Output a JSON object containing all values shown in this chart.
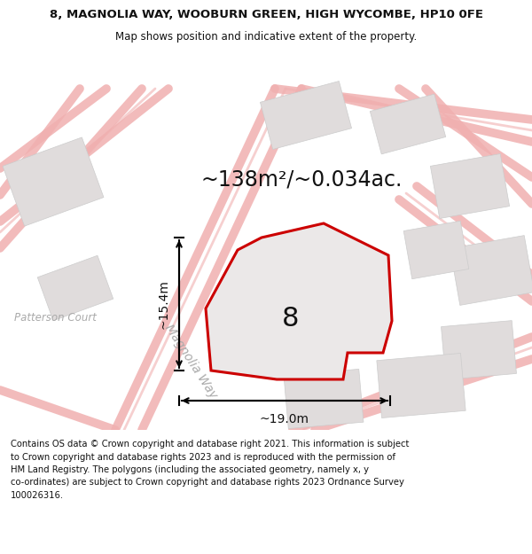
{
  "title_line1": "8, MAGNOLIA WAY, WOOBURN GREEN, HIGH WYCOMBE, HP10 0FE",
  "title_line2": "Map shows position and indicative extent of the property.",
  "area_label": "~138m²/~0.034ac.",
  "property_number": "8",
  "vertical_measure": "~15.4m",
  "horizontal_measure": "~19.0m",
  "road_label": "Magnolia Way",
  "court_label": "Patterson Court",
  "footer_text": "Contains OS data © Crown copyright and database right 2021. This information is subject\nto Crown copyright and database rights 2023 and is reproduced with the permission of\nHM Land Registry. The polygons (including the associated geometry, namely x, y\nco-ordinates) are subject to Crown copyright and database rights 2023 Ordnance Survey\n100026316.",
  "map_bg": "#f0eeee",
  "road_color": "#f0b0b0",
  "building_color": "#e0dcdc",
  "building_edge": "#cccccc",
  "property_fill": "#ebe8e8",
  "property_edge": "#cc0000",
  "text_color": "#111111",
  "gray_text": "#aaaaaa",
  "title_fontsize": 9.5,
  "subtitle_fontsize": 8.5,
  "area_fontsize": 17,
  "measure_fontsize": 10,
  "road_label_fontsize": 10,
  "court_label_fontsize": 8.5,
  "footer_fontsize": 7.2,
  "number_fontsize": 22
}
